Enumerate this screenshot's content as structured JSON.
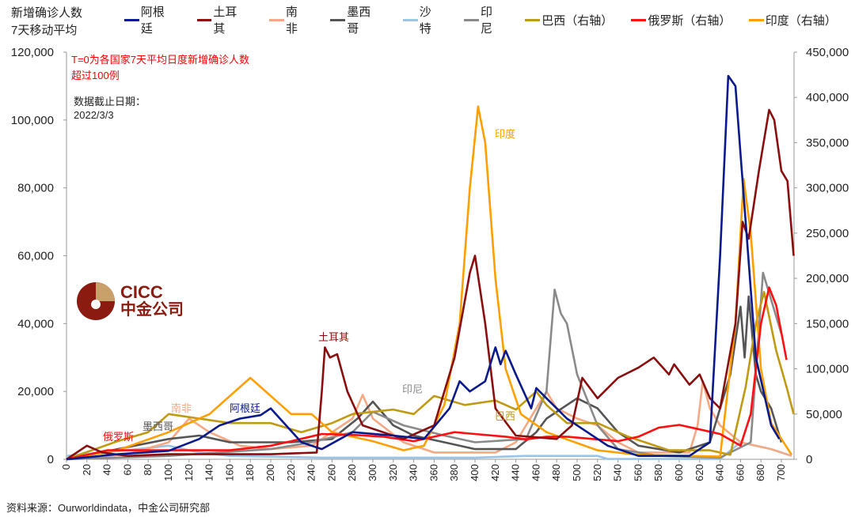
{
  "chart_data": {
    "type": "line",
    "left_axis_title": "新增确诊人数\n7天移动平均",
    "ylim_left": [
      0,
      120000
    ],
    "yticks_left": [
      0,
      20000,
      40000,
      60000,
      80000,
      100000,
      120000
    ],
    "ylim_right": [
      0,
      450000
    ],
    "yticks_right": [
      0,
      50000,
      100000,
      150000,
      200000,
      250000,
      300000,
      350000,
      400000,
      450000
    ],
    "xlim": [
      0,
      720
    ],
    "xticks": [
      0,
      20,
      40,
      60,
      80,
      100,
      120,
      140,
      160,
      180,
      200,
      220,
      240,
      260,
      280,
      300,
      320,
      340,
      360,
      380,
      400,
      420,
      440,
      460,
      480,
      500,
      520,
      540,
      560,
      580,
      600,
      620,
      640,
      660,
      680,
      700
    ],
    "grid": false,
    "legend_position": "top",
    "series": [
      {
        "name": "阿根廷",
        "label": "阿根廷",
        "axis": "left",
        "color": "#0a1a8c",
        "points": [
          [
            0,
            0
          ],
          [
            50,
            1500
          ],
          [
            100,
            2500
          ],
          [
            130,
            6000
          ],
          [
            150,
            10000
          ],
          [
            170,
            12000
          ],
          [
            190,
            13000
          ],
          [
            200,
            15000
          ],
          [
            215,
            10000
          ],
          [
            230,
            5000
          ],
          [
            250,
            3000
          ],
          [
            280,
            8000
          ],
          [
            320,
            7000
          ],
          [
            350,
            6000
          ],
          [
            375,
            15000
          ],
          [
            385,
            23000
          ],
          [
            395,
            20000
          ],
          [
            410,
            23000
          ],
          [
            420,
            33000
          ],
          [
            425,
            28000
          ],
          [
            430,
            32000
          ],
          [
            440,
            25000
          ],
          [
            455,
            15000
          ],
          [
            460,
            21000
          ],
          [
            470,
            18000
          ],
          [
            490,
            12000
          ],
          [
            510,
            8000
          ],
          [
            530,
            4000
          ],
          [
            560,
            1000
          ],
          [
            610,
            1000
          ],
          [
            630,
            5000
          ],
          [
            640,
            60000
          ],
          [
            648,
            113000
          ],
          [
            655,
            110000
          ],
          [
            660,
            90000
          ],
          [
            665,
            70000
          ],
          [
            675,
            30000
          ],
          [
            690,
            10000
          ],
          [
            698,
            6000
          ]
        ]
      },
      {
        "name": "土耳其",
        "label": "土耳其",
        "axis": "left",
        "color": "#8b0e0e",
        "points": [
          [
            0,
            0
          ],
          [
            10,
            2000
          ],
          [
            20,
            4000
          ],
          [
            35,
            2000
          ],
          [
            60,
            1000
          ],
          [
            100,
            1500
          ],
          [
            200,
            1500
          ],
          [
            245,
            2000
          ],
          [
            250,
            20000
          ],
          [
            253,
            33000
          ],
          [
            258,
            30000
          ],
          [
            265,
            31000
          ],
          [
            275,
            20000
          ],
          [
            290,
            10000
          ],
          [
            330,
            6000
          ],
          [
            360,
            10000
          ],
          [
            380,
            30000
          ],
          [
            395,
            55000
          ],
          [
            400,
            60000
          ],
          [
            410,
            40000
          ],
          [
            420,
            15000
          ],
          [
            440,
            7000
          ],
          [
            480,
            6000
          ],
          [
            495,
            10000
          ],
          [
            505,
            24000
          ],
          [
            520,
            18000
          ],
          [
            540,
            24000
          ],
          [
            560,
            27000
          ],
          [
            575,
            30000
          ],
          [
            590,
            25000
          ],
          [
            595,
            28000
          ],
          [
            610,
            22000
          ],
          [
            620,
            25000
          ],
          [
            630,
            18000
          ],
          [
            640,
            15000
          ],
          [
            655,
            40000
          ],
          [
            662,
            70000
          ],
          [
            668,
            65000
          ],
          [
            678,
            85000
          ],
          [
            688,
            103000
          ],
          [
            693,
            100000
          ],
          [
            700,
            85000
          ],
          [
            706,
            82000
          ],
          [
            712,
            60000
          ]
        ]
      },
      {
        "name": "南非",
        "label": "南非",
        "axis": "left",
        "color": "#f5a883",
        "points": [
          [
            0,
            0
          ],
          [
            60,
            1500
          ],
          [
            100,
            5000
          ],
          [
            120,
            12000
          ],
          [
            140,
            8000
          ],
          [
            170,
            4000
          ],
          [
            200,
            3000
          ],
          [
            240,
            4000
          ],
          [
            260,
            8000
          ],
          [
            280,
            12000
          ],
          [
            290,
            19000
          ],
          [
            300,
            12000
          ],
          [
            330,
            5000
          ],
          [
            360,
            2000
          ],
          [
            420,
            2000
          ],
          [
            440,
            5000
          ],
          [
            460,
            15000
          ],
          [
            470,
            20000
          ],
          [
            480,
            15000
          ],
          [
            500,
            12000
          ],
          [
            520,
            10000
          ],
          [
            540,
            5000
          ],
          [
            560,
            2000
          ],
          [
            610,
            2000
          ],
          [
            618,
            10000
          ],
          [
            623,
            23000
          ],
          [
            630,
            15000
          ],
          [
            640,
            10000
          ],
          [
            660,
            5000
          ],
          [
            690,
            3000
          ],
          [
            710,
            1000
          ]
        ]
      },
      {
        "name": "墨西哥",
        "label": "墨西哥",
        "axis": "left",
        "color": "#555555",
        "points": [
          [
            0,
            0
          ],
          [
            50,
            3000
          ],
          [
            100,
            6000
          ],
          [
            130,
            7000
          ],
          [
            160,
            5000
          ],
          [
            220,
            5000
          ],
          [
            260,
            6000
          ],
          [
            285,
            12000
          ],
          [
            300,
            17000
          ],
          [
            320,
            10000
          ],
          [
            340,
            7000
          ],
          [
            370,
            5000
          ],
          [
            400,
            3000
          ],
          [
            440,
            3000
          ],
          [
            460,
            8000
          ],
          [
            470,
            12000
          ],
          [
            500,
            18000
          ],
          [
            520,
            15000
          ],
          [
            540,
            8000
          ],
          [
            560,
            4000
          ],
          [
            600,
            2000
          ],
          [
            630,
            5000
          ],
          [
            650,
            25000
          ],
          [
            660,
            45000
          ],
          [
            664,
            30000
          ],
          [
            668,
            48000
          ],
          [
            675,
            25000
          ],
          [
            680,
            20000
          ],
          [
            690,
            15000
          ],
          [
            700,
            5000
          ]
        ]
      },
      {
        "name": "沙特",
        "axis": "left",
        "color": "#9cc3e8",
        "points": [
          [
            0,
            1000
          ],
          [
            70,
            3000
          ],
          [
            100,
            4000
          ],
          [
            130,
            2000
          ],
          [
            160,
            1000
          ],
          [
            250,
            500
          ],
          [
            400,
            500
          ],
          [
            450,
            1000
          ],
          [
            520,
            1000
          ],
          [
            530,
            100
          ],
          [
            640,
            100
          ],
          [
            660,
            5000
          ],
          [
            690,
            3000
          ],
          [
            710,
            1000
          ]
        ]
      },
      {
        "name": "印尼",
        "label": "印尼",
        "axis": "left",
        "color": "#8a8a8a",
        "points": [
          [
            0,
            0
          ],
          [
            100,
            1000
          ],
          [
            200,
            3000
          ],
          [
            240,
            5000
          ],
          [
            280,
            8000
          ],
          [
            300,
            14000
          ],
          [
            330,
            10000
          ],
          [
            370,
            7000
          ],
          [
            400,
            5000
          ],
          [
            450,
            6000
          ],
          [
            470,
            20000
          ],
          [
            478,
            50000
          ],
          [
            484,
            43000
          ],
          [
            490,
            40000
          ],
          [
            500,
            25000
          ],
          [
            520,
            10000
          ],
          [
            540,
            3000
          ],
          [
            580,
            1000
          ],
          [
            640,
            500
          ],
          [
            670,
            5000
          ],
          [
            682,
            55000
          ],
          [
            692,
            45000
          ],
          [
            700,
            37000
          ]
        ]
      },
      {
        "name": "巴西（右轴）",
        "label": "巴西",
        "axis": "right",
        "color": "#c09a10",
        "points": [
          [
            0,
            0
          ],
          [
            50,
            20000
          ],
          [
            80,
            30000
          ],
          [
            100,
            50000
          ],
          [
            130,
            45000
          ],
          [
            160,
            40000
          ],
          [
            200,
            40000
          ],
          [
            230,
            30000
          ],
          [
            260,
            40000
          ],
          [
            280,
            50000
          ],
          [
            320,
            55000
          ],
          [
            340,
            50000
          ],
          [
            360,
            70000
          ],
          [
            390,
            60000
          ],
          [
            420,
            65000
          ],
          [
            440,
            55000
          ],
          [
            460,
            75000
          ],
          [
            470,
            60000
          ],
          [
            490,
            40000
          ],
          [
            520,
            40000
          ],
          [
            550,
            25000
          ],
          [
            590,
            10000
          ],
          [
            630,
            10000
          ],
          [
            650,
            5000
          ],
          [
            665,
            80000
          ],
          [
            675,
            150000
          ],
          [
            683,
            185000
          ],
          [
            695,
            120000
          ],
          [
            705,
            80000
          ],
          [
            712,
            50000
          ]
        ]
      },
      {
        "name": "俄罗斯（右轴）",
        "label": "俄罗斯",
        "axis": "right",
        "color": "#ff1010",
        "points": [
          [
            0,
            0
          ],
          [
            40,
            10000
          ],
          [
            80,
            10000
          ],
          [
            120,
            10000
          ],
          [
            160,
            10000
          ],
          [
            200,
            15000
          ],
          [
            220,
            20000
          ],
          [
            250,
            28000
          ],
          [
            280,
            27000
          ],
          [
            310,
            25000
          ],
          [
            340,
            20000
          ],
          [
            360,
            25000
          ],
          [
            380,
            30000
          ],
          [
            400,
            28000
          ],
          [
            430,
            25000
          ],
          [
            450,
            22000
          ],
          [
            470,
            25000
          ],
          [
            490,
            25000
          ],
          [
            520,
            22000
          ],
          [
            540,
            20000
          ],
          [
            560,
            25000
          ],
          [
            580,
            35000
          ],
          [
            600,
            38000
          ],
          [
            620,
            33000
          ],
          [
            640,
            28000
          ],
          [
            660,
            15000
          ],
          [
            670,
            50000
          ],
          [
            680,
            150000
          ],
          [
            688,
            190000
          ],
          [
            695,
            170000
          ],
          [
            705,
            110000
          ]
        ]
      },
      {
        "name": "印度（右轴）",
        "label": "印度",
        "axis": "right",
        "color": "#ff9f00",
        "points": [
          [
            0,
            0
          ],
          [
            50,
            10000
          ],
          [
            100,
            30000
          ],
          [
            140,
            50000
          ],
          [
            170,
            80000
          ],
          [
            180,
            90000
          ],
          [
            200,
            70000
          ],
          [
            220,
            50000
          ],
          [
            240,
            50000
          ],
          [
            260,
            30000
          ],
          [
            300,
            20000
          ],
          [
            330,
            10000
          ],
          [
            350,
            15000
          ],
          [
            370,
            60000
          ],
          [
            385,
            150000
          ],
          [
            395,
            300000
          ],
          [
            403,
            390000
          ],
          [
            410,
            350000
          ],
          [
            420,
            200000
          ],
          [
            430,
            100000
          ],
          [
            445,
            50000
          ],
          [
            470,
            30000
          ],
          [
            520,
            10000
          ],
          [
            560,
            5000
          ],
          [
            640,
            3000
          ],
          [
            655,
            150000
          ],
          [
            663,
            310000
          ],
          [
            670,
            250000
          ],
          [
            680,
            100000
          ],
          [
            690,
            40000
          ],
          [
            710,
            5000
          ]
        ]
      }
    ]
  },
  "title": {
    "line1": "新增确诊人数",
    "line2": "7天移动平均"
  },
  "notes": {
    "red_line1": "T=0为各国家7天平均日度新增确诊人数",
    "red_line2": "超过100例",
    "date_label": "数据截止日期：",
    "date_value": "2022/3/3"
  },
  "source": "资料来源：Ourworldindata，中金公司研究部",
  "logo": {
    "en": "CICC",
    "cn": "中金公司"
  }
}
